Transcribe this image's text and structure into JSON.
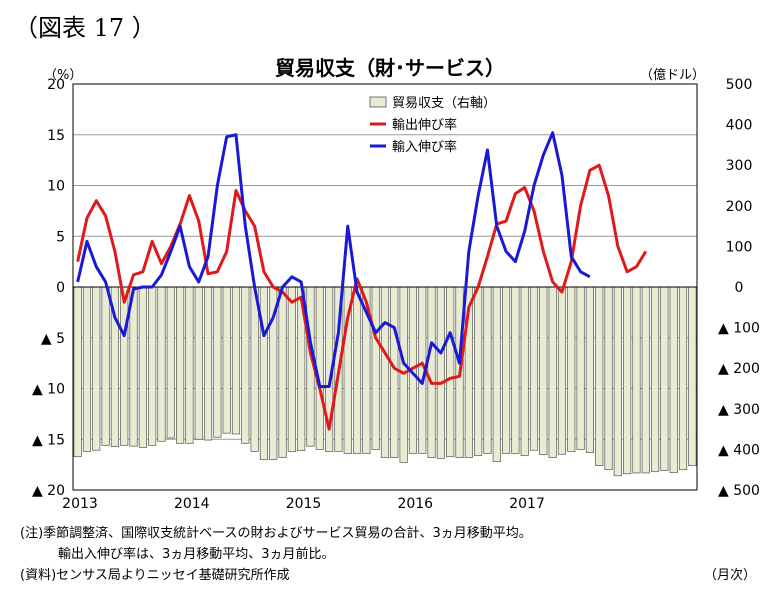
{
  "figure_label": "（図表 17 ）",
  "chart_data": {
    "type": "bar+line",
    "title": "貿易収支（財･サービス）",
    "left_unit": "（%）",
    "right_unit": "（億ドル）",
    "x_unit": "（月次）",
    "x_tick_labels": [
      "2013",
      "2014",
      "2015",
      "2016",
      "2017"
    ],
    "left_axis": {
      "min": -20,
      "max": 20,
      "step": 5,
      "tick_labels": [
        "20",
        "15",
        "10",
        "5",
        "0",
        "▲ 5",
        "▲ 10",
        "▲ 15",
        "▲ 20"
      ]
    },
    "right_axis": {
      "min": -500,
      "max": 500,
      "step": 100,
      "tick_labels": [
        "500",
        "400",
        "300",
        "200",
        "100",
        "0",
        "▲ 100",
        "▲ 200",
        "▲ 300",
        "▲ 400",
        "▲ 500"
      ]
    },
    "legend": [
      "貿易収支（右軸）",
      "輸出伸び率",
      "輸入伸び率"
    ],
    "colors": {
      "balance_fill": "#e8ecd2",
      "balance_stroke": "#555555",
      "exports": "#e0191b",
      "imports": "#1a1ad6"
    },
    "series": [
      {
        "name": "貿易収支（右軸）",
        "axis": "right",
        "kind": "bar",
        "values": [
          -418,
          -405,
          -402,
          -390,
          -393,
          -390,
          -392,
          -395,
          -390,
          -380,
          -372,
          -385,
          -385,
          -375,
          -377,
          -370,
          -360,
          -362,
          -385,
          -405,
          -425,
          -425,
          -420,
          -405,
          -403,
          -392,
          -400,
          -405,
          -405,
          -410,
          -410,
          -410,
          -400,
          -420,
          -420,
          -432,
          -410,
          -410,
          -420,
          -422,
          -418,
          -420,
          -420,
          -415,
          -410,
          -430,
          -410,
          -410,
          -415,
          -402,
          -413,
          -420,
          -412,
          -405,
          -400,
          -408,
          -440,
          -450,
          -465,
          -460,
          -458,
          -458,
          -455,
          -452,
          -457,
          -450,
          -440
        ]
      },
      {
        "name": "輸出伸び率",
        "axis": "left",
        "kind": "line",
        "values": [
          2.5,
          6.8,
          8.5,
          7.0,
          3.5,
          -1.5,
          1.2,
          1.5,
          4.5,
          2.3,
          4.0,
          6.2,
          9.0,
          6.5,
          1.3,
          1.5,
          3.5,
          9.5,
          7.5,
          6.0,
          1.5,
          0.0,
          -0.5,
          -1.5,
          -1.0,
          -6.5,
          -10.0,
          -14.0,
          -8.5,
          -3.0,
          0.8,
          -1.5,
          -5.0,
          -6.5,
          -8.0,
          -8.5,
          -8.0,
          -7.5,
          -9.5,
          -9.5,
          -9.0,
          -8.8,
          -2.0,
          0.0,
          3.0,
          6.2,
          6.5,
          9.2,
          9.8,
          7.5,
          3.5,
          0.5,
          -0.5,
          2.5,
          8.0,
          11.5,
          12.0,
          9.0,
          4.0,
          1.5,
          2.0,
          3.5
        ]
      },
      {
        "name": "輸入伸び率",
        "axis": "left",
        "kind": "line",
        "values": [
          0.5,
          4.5,
          2.0,
          0.5,
          -3.0,
          -4.8,
          -0.2,
          0.0,
          0.0,
          1.2,
          3.5,
          6.0,
          2.0,
          0.5,
          3.0,
          10.0,
          14.8,
          15.0,
          6.0,
          0.0,
          -4.8,
          -3.0,
          0.0,
          1.0,
          0.5,
          -5.5,
          -9.8,
          -9.8,
          -4.5,
          6.0,
          -0.5,
          -2.5,
          -4.5,
          -3.5,
          -4.0,
          -7.5,
          -8.5,
          -9.5,
          -5.5,
          -6.5,
          -4.5,
          -7.5,
          3.5,
          9.0,
          13.5,
          6.0,
          3.5,
          2.5,
          5.5,
          10.0,
          13.0,
          15.2,
          11.0,
          3.0,
          1.5,
          1.0
        ]
      }
    ]
  },
  "notes": {
    "line1": "(注)季節調整済、国際収支統計ベースの財およびサービス貿易の合計、3ヵ月移動平均。",
    "line2": "輸出入伸び率は、3ヵ月移動平均、3ヵ月前比。",
    "line3": "(資料)センサス局よりニッセイ基礎研究所作成"
  }
}
